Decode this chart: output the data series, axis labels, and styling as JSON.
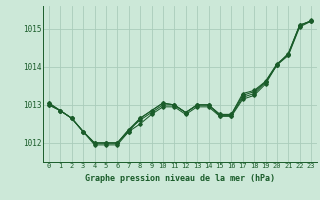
{
  "title": "Graphe pression niveau de la mer (hPa)",
  "bg_color": "#cce8d8",
  "line_color": "#1a5c2a",
  "grid_color": "#aaccbb",
  "ylim": [
    1011.5,
    1015.6
  ],
  "xlim": [
    -0.5,
    23.5
  ],
  "yticks": [
    1012,
    1013,
    1014,
    1015
  ],
  "xticks": [
    0,
    1,
    2,
    3,
    4,
    5,
    6,
    7,
    8,
    9,
    10,
    11,
    12,
    13,
    14,
    15,
    16,
    17,
    18,
    19,
    20,
    21,
    22,
    23
  ],
  "series": [
    [
      1013.0,
      1012.85,
      1012.65,
      1012.3,
      1012.0,
      1012.0,
      1012.0,
      1012.3,
      1012.5,
      1012.75,
      1012.95,
      1012.95,
      1012.75,
      1012.95,
      1012.95,
      1012.7,
      1012.7,
      1013.15,
      1013.25,
      1013.55,
      1014.05,
      1014.35,
      1015.1,
      1015.2
    ],
    [
      1013.05,
      1012.85,
      1012.65,
      1012.3,
      1012.0,
      1012.0,
      1012.0,
      1012.35,
      1012.6,
      1012.8,
      1013.0,
      1013.0,
      1012.8,
      1013.0,
      1013.0,
      1012.72,
      1012.72,
      1013.2,
      1013.3,
      1013.6,
      1014.05,
      1014.35,
      1015.1,
      1015.2
    ],
    [
      1013.05,
      1012.85,
      1012.65,
      1012.3,
      1012.0,
      1012.0,
      1012.0,
      1012.35,
      1012.65,
      1012.85,
      1013.05,
      1013.0,
      1012.8,
      1013.0,
      1013.0,
      1012.75,
      1012.75,
      1013.25,
      1013.35,
      1013.6,
      1014.05,
      1014.3,
      1015.05,
      1015.2
    ],
    [
      1013.0,
      1012.85,
      1012.65,
      1012.3,
      1011.95,
      1011.95,
      1011.95,
      1012.3,
      1012.65,
      1012.85,
      1013.05,
      1013.0,
      1012.8,
      1013.0,
      1013.0,
      1012.75,
      1012.75,
      1013.3,
      1013.38,
      1013.62,
      1014.08,
      1014.32,
      1015.08,
      1015.22
    ]
  ]
}
